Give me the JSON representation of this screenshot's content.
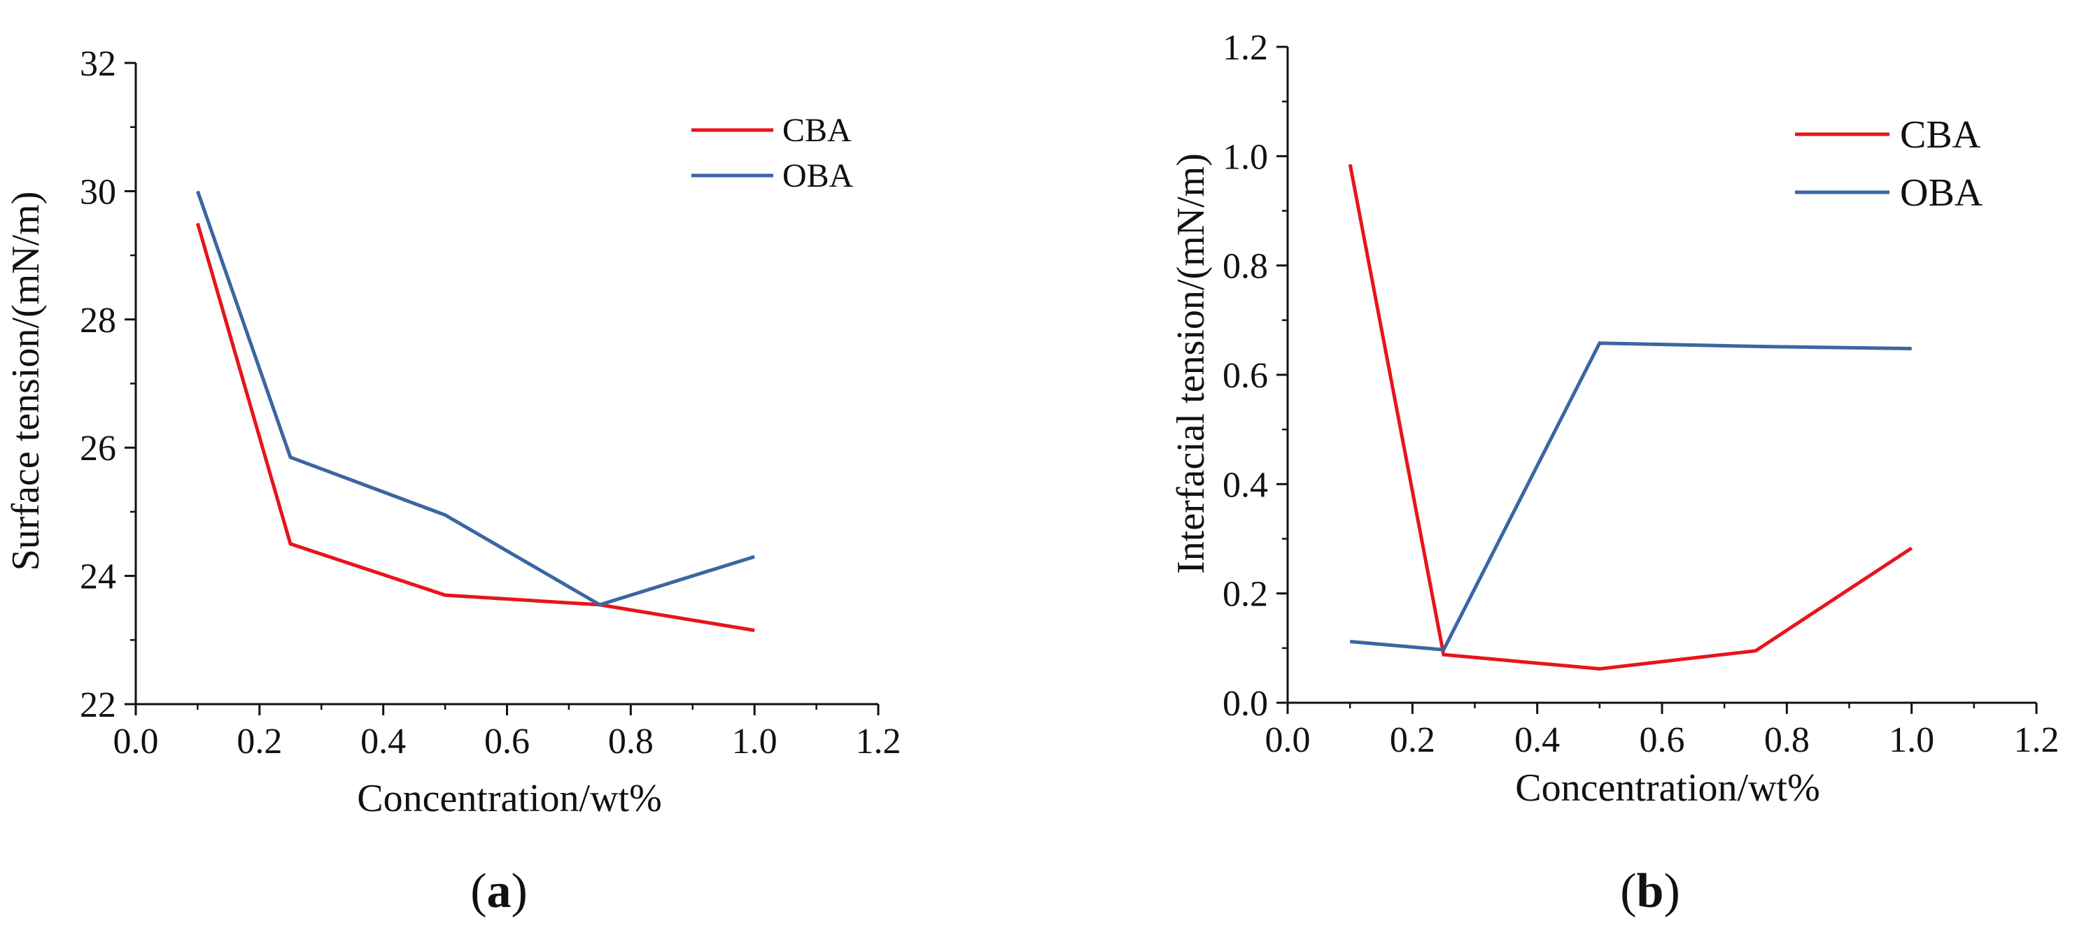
{
  "chart_data": [
    {
      "type": "line",
      "panel_label": "a",
      "xlabel": "Concentration/wt%",
      "ylabel": "Surface tension/(mN/m)",
      "xlim": [
        0.0,
        1.2
      ],
      "ylim": [
        22,
        32
      ],
      "xticks": [
        "0.0",
        "0.2",
        "0.4",
        "0.6",
        "0.8",
        "1.0",
        "1.2"
      ],
      "yticks": [
        "22",
        "24",
        "26",
        "28",
        "30",
        "32"
      ],
      "x": [
        0.1,
        0.25,
        0.5,
        0.75,
        1.0
      ],
      "legend_position": "top-right",
      "series": [
        {
          "name": "CBA",
          "color": "#e8141c",
          "values": [
            29.5,
            24.5,
            23.7,
            23.55,
            23.15
          ]
        },
        {
          "name": "OBA",
          "color": "#3b66a3",
          "values": [
            30.0,
            25.85,
            24.95,
            23.55,
            24.3
          ]
        }
      ]
    },
    {
      "type": "line",
      "panel_label": "b",
      "xlabel": "Concentration/wt%",
      "ylabel": "Interfacial tension/(mN/m)",
      "xlim": [
        0.0,
        1.2
      ],
      "ylim": [
        0.0,
        1.2
      ],
      "xticks": [
        "0.0",
        "0.2",
        "0.4",
        "0.6",
        "0.8",
        "1.0",
        "1.2"
      ],
      "yticks": [
        "0.0",
        "0.2",
        "0.4",
        "0.6",
        "0.8",
        "1.0",
        "1.2"
      ],
      "x": [
        0.1,
        0.25,
        0.5,
        0.75,
        1.0
      ],
      "legend_position": "top-right",
      "series": [
        {
          "name": "CBA",
          "color": "#e8141c",
          "values": [
            0.985,
            0.088,
            0.062,
            0.095,
            0.283
          ]
        },
        {
          "name": "OBA",
          "color": "#3b66a3",
          "values": [
            0.112,
            0.097,
            0.658,
            0.652,
            0.648
          ]
        }
      ]
    }
  ]
}
